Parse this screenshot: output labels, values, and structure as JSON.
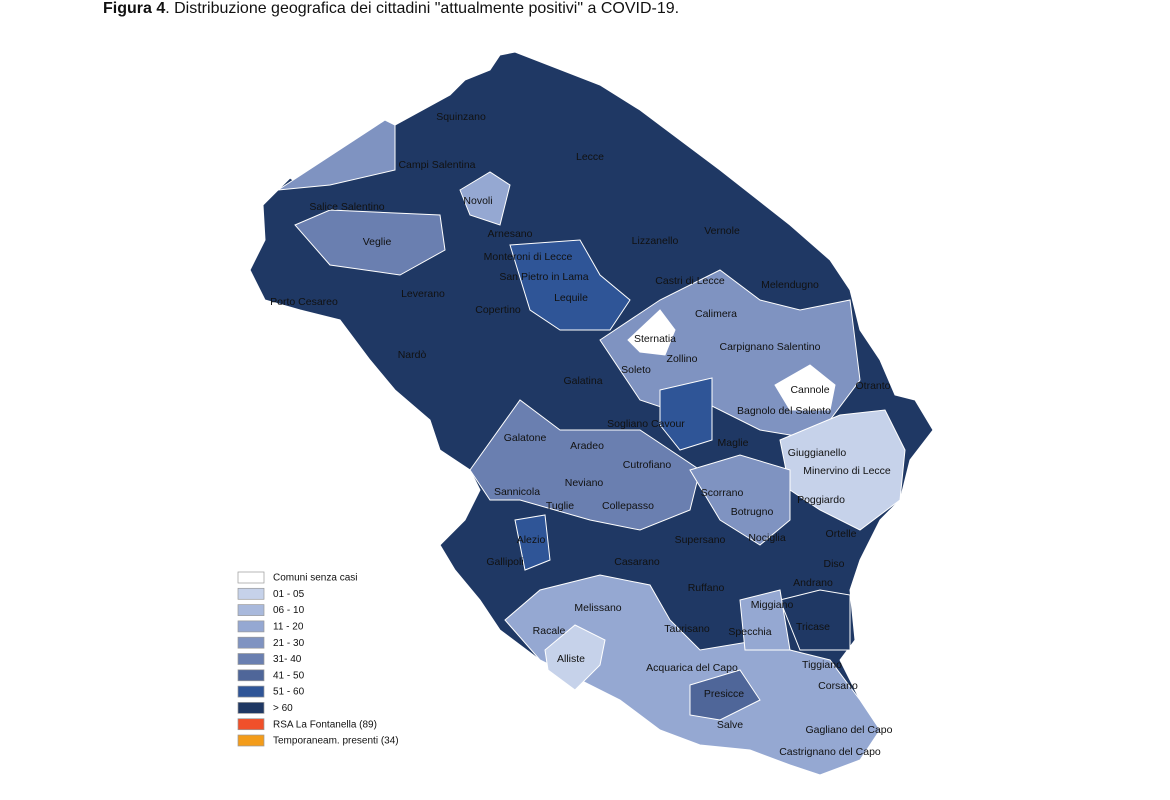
{
  "caption": {
    "label": "Figura 4",
    "text": ". Distribuzione  geografica dei cittadini \"attualmente positivi\" a COVID-19."
  },
  "places": [
    "Squinzano",
    "Lecce",
    "Campi Salentina",
    "Salice Salentino",
    "Novoli",
    "Arnesano",
    "Veglie",
    "Lizzanello",
    "Vernole",
    "Monteroni di Lecce",
    "San Pietro in Lama",
    "Castri di Lecce",
    "Melendugno",
    "Porto Cesareo",
    "Leverano",
    "Copertino",
    "Lequile",
    "Calimera",
    "Sternatia",
    "Carpignano Salentino",
    "Zollino",
    "Nardò",
    "Soleto",
    "Galatina",
    "Cannole",
    "Otranto",
    "Bagnolo del Salento",
    "Sogliano Cavour",
    "Galatone",
    "Aradeo",
    "Maglie",
    "Giuggianello",
    "Minervino di Lecce",
    "Cutrofiano",
    "Neviano",
    "Sannicola",
    "Scorrano",
    "Poggiardo",
    "Tuglie",
    "Collepasso",
    "Botrugno",
    "Alezio",
    "Supersano",
    "Nociglia",
    "Ortelle",
    "Gallipoli",
    "Casarano",
    "Diso",
    "Ruffano",
    "Andrano",
    "Melissano",
    "Miggiano",
    "Racale",
    "Taurisano",
    "Specchia",
    "Tricase",
    "Alliste",
    "Acquarica del Capo",
    "Tiggiano",
    "Corsano",
    "Presicce",
    "Salve",
    "Gagliano del Capo",
    "Castrignano del Capo"
  ],
  "legend": [
    {
      "label": "Comuni senza casi",
      "color": "#ffffff"
    },
    {
      "label": "01 - 05",
      "color": "#c6d2ea"
    },
    {
      "label": "06 - 10",
      "color": "#a9b9dc"
    },
    {
      "label": "11 - 20",
      "color": "#95a8d2"
    },
    {
      "label": "21 - 30",
      "color": "#7f93c1"
    },
    {
      "label": "31- 40",
      "color": "#6a7fb0"
    },
    {
      "label": "41 - 50",
      "color": "#4f6699"
    },
    {
      "label": "51 - 60",
      "color": "#2f5597"
    },
    {
      "label": "> 60",
      "color": "#1f3864"
    },
    {
      "label": "RSA La Fontanella (89)",
      "color": "#f0502a"
    },
    {
      "label": "Temporaneam. presenti (34)",
      "color": "#f39c1a"
    }
  ]
}
